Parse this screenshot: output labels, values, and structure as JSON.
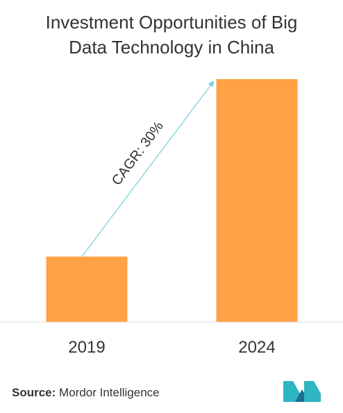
{
  "title_lines": [
    "Investment Opportunities of Big",
    "Data Technology in China"
  ],
  "chart_data": {
    "type": "bar",
    "categories": [
      "2019",
      "2024"
    ],
    "values": [
      1.0,
      3.71
    ],
    "annotation": "CAGR: 30%",
    "bar_color": "#FFA145",
    "arrow_color": "#6ED3D8"
  },
  "source": {
    "label": "Source:",
    "text": "Mordor Intelligence"
  },
  "logo": {
    "icon": "mordor-intelligence-logo",
    "colors": [
      "#2DB5C2",
      "#1F6E91"
    ]
  }
}
